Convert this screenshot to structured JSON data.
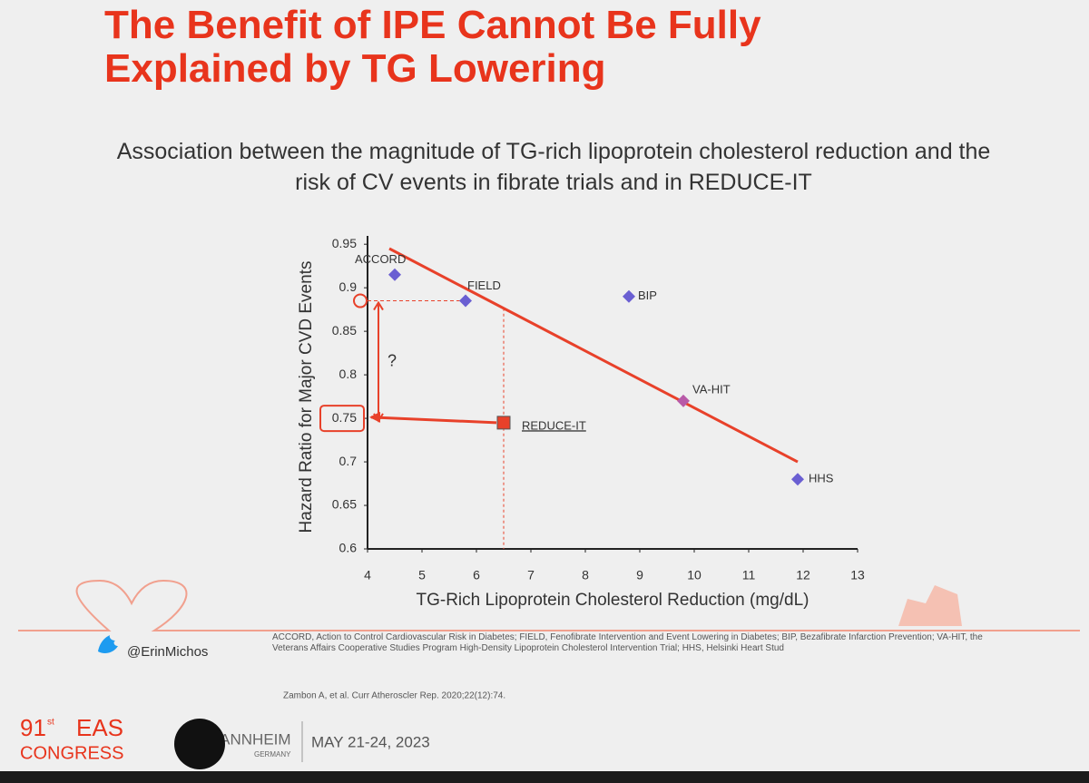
{
  "chart_data": {
    "type": "scatter",
    "title": "The Benefit of IPE Cannot Be Fully Explained by TG Lowering",
    "subtitle": "Association between the magnitude of TG-rich lipoprotein cholesterol reduction and the risk of CV events in fibrate trials and in REDUCE-IT",
    "x_label": "TG-Rich Lipoprotein Cholesterol Reduction (mg/dL)",
    "y_label": "Hazard Ratio for Major CVD Events",
    "labels": [
      "ACCORD",
      "FIELD",
      "BIP",
      "VA-HIT",
      "HHS",
      "REDUCE-IT"
    ],
    "x": [
      4.5,
      5.8,
      8.8,
      9.8,
      11.9,
      6.5
    ],
    "values": [
      0.915,
      0.885,
      0.89,
      0.77,
      0.68,
      0.745
    ],
    "colors": [
      "#6a5fd2",
      "#6a5fd2",
      "#6a5fd2",
      "#b85aa8",
      "#6a5fd2",
      "#e8412a"
    ],
    "markers": [
      "diamond",
      "diamond",
      "diamond",
      "diamond",
      "diamond",
      "square"
    ],
    "trend": {
      "x": [
        4.4,
        11.9
      ],
      "values": [
        0.945,
        0.7
      ],
      "color": "#e8412a"
    },
    "annotation": "?",
    "xlim": [
      4,
      13
    ],
    "xticks": [
      4,
      5,
      6,
      7,
      8,
      9,
      10,
      11,
      12,
      13
    ],
    "ylim": [
      0.6,
      0.97
    ],
    "yticks": [
      0.6,
      0.65,
      0.7,
      0.75,
      0.8,
      0.85,
      0.9,
      0.95
    ]
  },
  "footer": {
    "twitter": "@ErinMichos",
    "abbreviations": "ACCORD, Action to Control Cardiovascular Risk in Diabetes; FIELD, Fenofibrate Intervention and Event Lowering in Diabetes; BIP, Bezafibrate Infarction Prevention; VA-HIT, the Veterans Affairs Cooperative Studies Program High-Density Lipoprotein Cholesterol Intervention Trial; HHS, Helsinki Heart Stud",
    "citation": "Zambon A, et al. Curr Atheroscler Rep. 2020;22(12):74.",
    "congress_number": "91",
    "congress_suffix": "st",
    "congress_name": "EAS",
    "congress_word": "CONGRESS",
    "city": "MANNHEIM",
    "country": "GERMANY",
    "dates": "MAY 21-24, 2023"
  }
}
